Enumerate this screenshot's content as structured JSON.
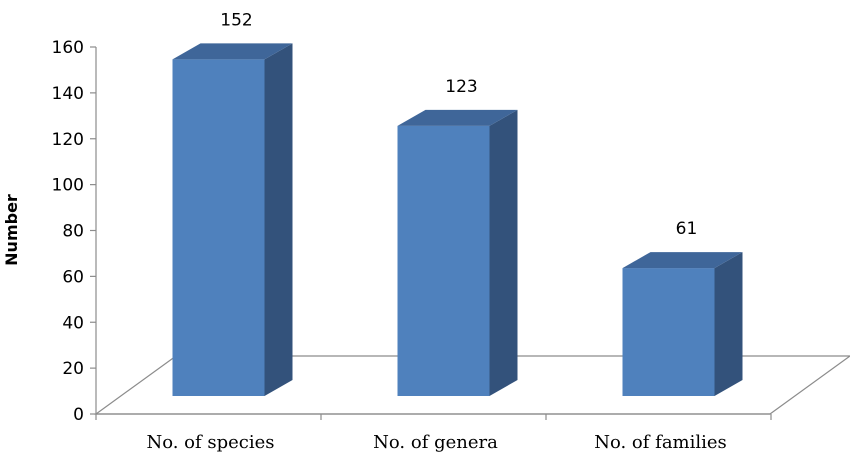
{
  "chart_data": {
    "type": "bar",
    "categories": [
      "No. of species",
      "No. of genera",
      "No. of families"
    ],
    "values": [
      152,
      123,
      61
    ],
    "data_labels": [
      "152",
      "123",
      "61"
    ],
    "title": "",
    "xlabel": "",
    "ylabel": "Number",
    "ylim": [
      0,
      160
    ],
    "yticks": [
      "0",
      "20",
      "40",
      "60",
      "80",
      "100",
      "120",
      "140",
      "160"
    ],
    "grid": false,
    "legend": "none",
    "style": "3d-column",
    "colors": {
      "front": "#4f81bd",
      "side": "#33527b",
      "top": "#3f6699"
    }
  }
}
